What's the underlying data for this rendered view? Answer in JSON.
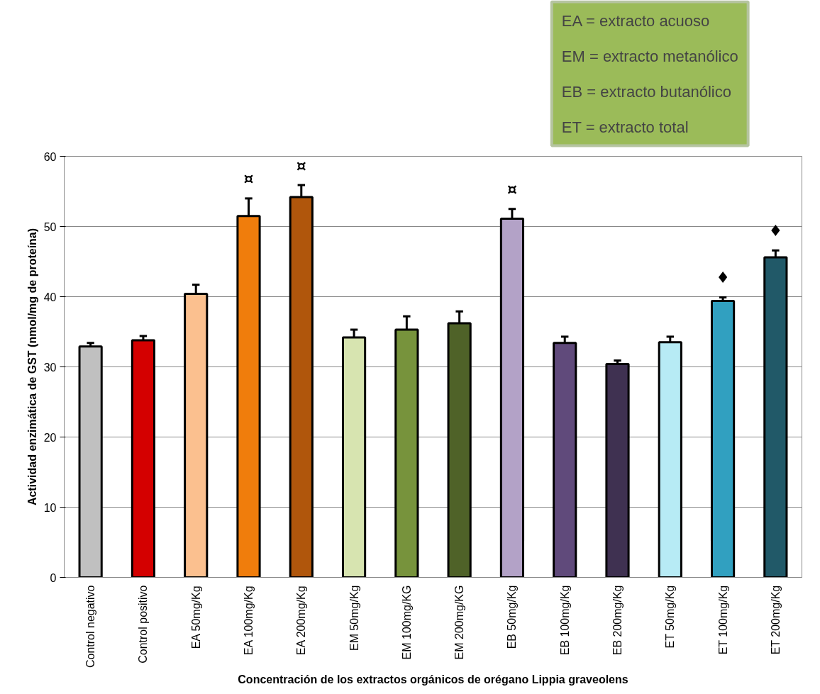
{
  "chart_data": {
    "type": "bar",
    "xlabel": "Concentración de los extractos orgánicos de orégano Lippia graveolens",
    "ylabel": "Actividad enzimática de GST (nmol/mg de proteína)",
    "categories": [
      "Control negativo",
      "Control positivo",
      "EA 50mg/Kg",
      "EA 100mg/Kg",
      "EA 200mg/Kg",
      "EM 50mg/Kg",
      "EM 100mg/KG",
      "EM 200mg/KG",
      "EB 50mg/Kg",
      "EB 100mg/Kg",
      "EB 200mg/Kg",
      "ET 50mg/Kg",
      "ET 100mg/Kg",
      "ET 200mg/Kg"
    ],
    "values": [
      32.9,
      33.8,
      40.4,
      51.5,
      54.2,
      34.2,
      35.3,
      36.2,
      51.1,
      33.4,
      30.4,
      33.5,
      39.4,
      45.6
    ],
    "errors": [
      [
        32.9,
        33.4
      ],
      [
        33.8,
        34.4
      ],
      [
        40.4,
        41.7
      ],
      [
        51.5,
        54.0
      ],
      [
        54.2,
        55.9
      ],
      [
        34.2,
        35.3
      ],
      [
        35.3,
        37.2
      ],
      [
        36.2,
        37.9
      ],
      [
        51.1,
        52.5
      ],
      [
        33.4,
        34.3
      ],
      [
        30.4,
        30.9
      ],
      [
        33.5,
        34.3
      ],
      [
        39.4,
        39.9
      ],
      [
        45.6,
        46.6
      ]
    ],
    "colors": [
      "#c0c0c0",
      "#d40000",
      "#fbc08f",
      "#f07d0c",
      "#b0560c",
      "#d7e4b0",
      "#77933c",
      "#4f6228",
      "#b3a2c7",
      "#604a7b",
      "#3f3151",
      "#b7ebf5",
      "#31a0c0",
      "#215968"
    ],
    "ylim": [
      0,
      60
    ],
    "yticks": [
      0,
      10,
      20,
      30,
      40,
      50,
      60
    ],
    "grid": "y",
    "value_labels": [
      null,
      null,
      null,
      "¤",
      "¤",
      null,
      null,
      null,
      "¤",
      null,
      null,
      null,
      "♦",
      "♦"
    ],
    "annotations": [
      "EA = extracto acuoso",
      "EM = extracto metanólico",
      "EB = extracto butanólico",
      "ET = extracto total"
    ]
  }
}
